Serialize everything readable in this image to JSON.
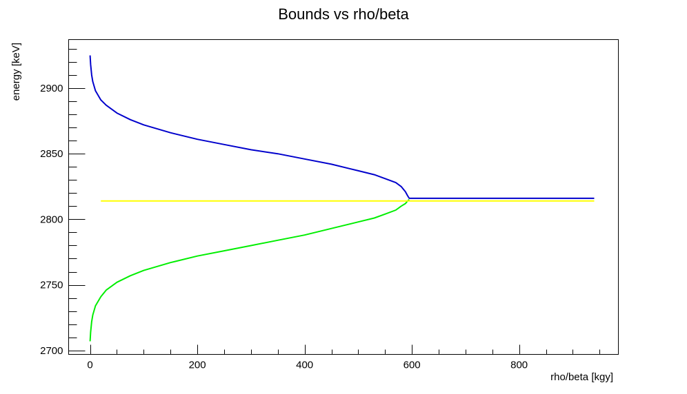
{
  "chart_data": {
    "type": "line",
    "title": "Bounds vs rho/beta",
    "xlabel": "rho/beta [kgy]",
    "ylabel": "energy [keV]",
    "xlim": [
      -40,
      985
    ],
    "ylim": [
      2697,
      2937
    ],
    "x_ticks": [
      0,
      200,
      400,
      600,
      800
    ],
    "x_tick_labels": [
      "0",
      "200",
      "400",
      "600",
      "800"
    ],
    "y_ticks": [
      2700,
      2750,
      2800,
      2850,
      2900
    ],
    "y_tick_labels": [
      "2700",
      "2750",
      "2800",
      "2850",
      "2900"
    ],
    "grid": false,
    "legend": "none",
    "series": [
      {
        "color": "#0000cc",
        "points": [
          [
            0,
            2925
          ],
          [
            1,
            2918
          ],
          [
            3,
            2910
          ],
          [
            5,
            2905
          ],
          [
            10,
            2898
          ],
          [
            20,
            2891
          ],
          [
            30,
            2887
          ],
          [
            50,
            2881
          ],
          [
            75,
            2876
          ],
          [
            100,
            2872
          ],
          [
            150,
            2866
          ],
          [
            200,
            2861
          ],
          [
            250,
            2857
          ],
          [
            300,
            2853
          ],
          [
            350,
            2850
          ],
          [
            400,
            2846
          ],
          [
            450,
            2842
          ],
          [
            500,
            2837
          ],
          [
            530,
            2834
          ],
          [
            550,
            2831
          ],
          [
            570,
            2828
          ],
          [
            580,
            2825
          ],
          [
            588,
            2821
          ],
          [
            592,
            2818
          ],
          [
            595,
            2816
          ],
          [
            940,
            2816
          ]
        ]
      },
      {
        "color": "#00ee00",
        "points": [
          [
            0,
            2707
          ],
          [
            1,
            2714
          ],
          [
            3,
            2722
          ],
          [
            5,
            2727
          ],
          [
            10,
            2734
          ],
          [
            20,
            2741
          ],
          [
            30,
            2746
          ],
          [
            50,
            2752
          ],
          [
            75,
            2757
          ],
          [
            100,
            2761
          ],
          [
            150,
            2767
          ],
          [
            200,
            2772
          ],
          [
            250,
            2776
          ],
          [
            300,
            2780
          ],
          [
            350,
            2784
          ],
          [
            400,
            2788
          ],
          [
            450,
            2793
          ],
          [
            500,
            2798
          ],
          [
            530,
            2801
          ],
          [
            550,
            2804
          ],
          [
            570,
            2807
          ],
          [
            580,
            2810
          ],
          [
            588,
            2812
          ],
          [
            592,
            2814
          ],
          [
            595,
            2815
          ]
        ]
      },
      {
        "color": "#ffff00",
        "points": [
          [
            20,
            2814
          ],
          [
            940,
            2814
          ]
        ]
      }
    ]
  }
}
